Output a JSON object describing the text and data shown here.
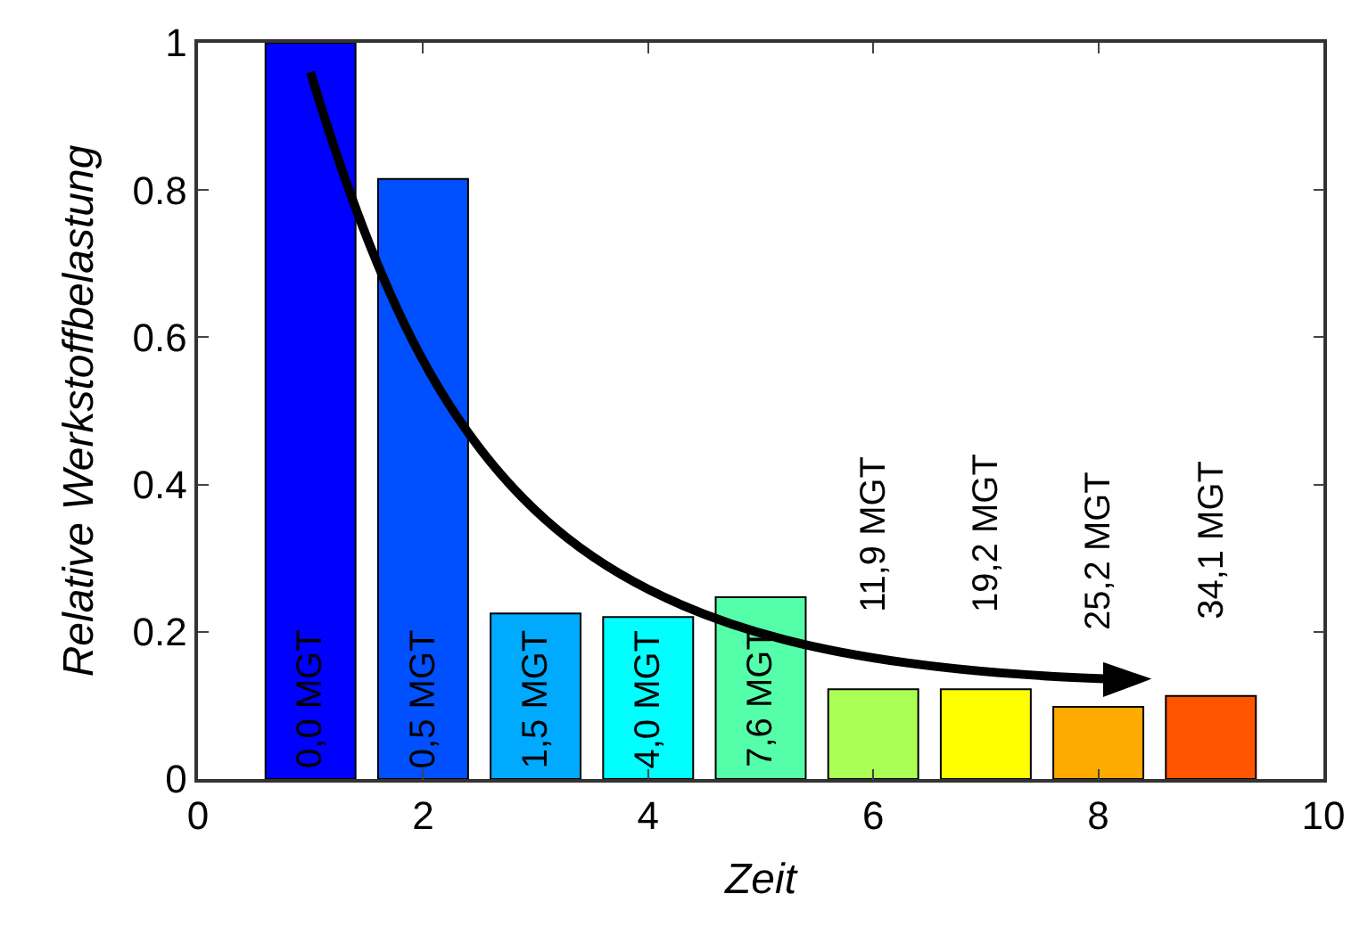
{
  "chart_data": {
    "type": "bar",
    "xlabel": "Zeit",
    "ylabel": "Relative Werkstoffbelastung",
    "x": [
      1,
      2,
      3,
      4,
      5,
      6,
      7,
      8,
      9
    ],
    "values": [
      1.0,
      0.815,
      0.225,
      0.22,
      0.247,
      0.122,
      0.122,
      0.098,
      0.113
    ],
    "annotations": [
      "0,0 MGT",
      "0,5 MGT",
      "1,5 MGT",
      "4,0 MGT",
      "7,6 MGT",
      "11,9 MGT",
      "19,2 MGT",
      "25,2 MGT",
      "34,1 MGT"
    ],
    "colors": [
      "#0000ff",
      "#0050ff",
      "#00aaff",
      "#00ffff",
      "#55ffaa",
      "#aaff55",
      "#ffff00",
      "#ffaa00",
      "#ff5500"
    ],
    "xlim": [
      0,
      10
    ],
    "xticks": [
      0,
      2,
      4,
      6,
      8,
      10
    ],
    "ylim": [
      0,
      1
    ],
    "yticks": [
      0,
      0.2,
      0.4,
      0.6,
      0.8,
      1
    ]
  }
}
